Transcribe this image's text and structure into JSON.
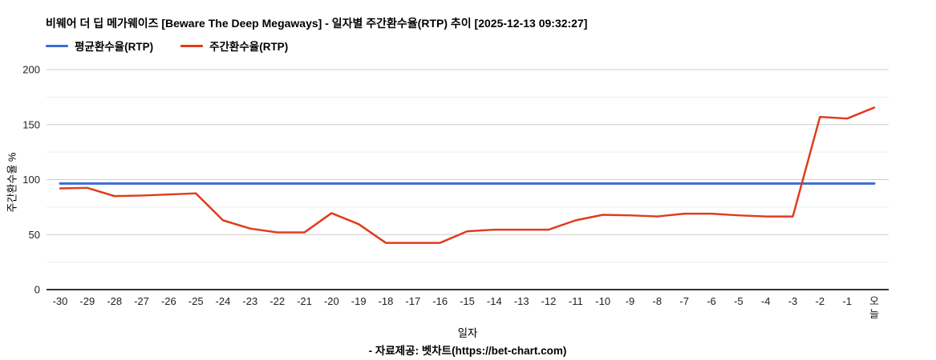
{
  "chart_data": {
    "type": "line",
    "title": "비웨어 더 딥 메가웨이즈 [Beware The Deep Megaways] - 일자별 주간환수율(RTP) 추이 [2025-12-13 09:32:27]",
    "xlabel": "일자",
    "ylabel": "주간환수율 %",
    "ylim": [
      0,
      200
    ],
    "yticks": [
      0,
      50,
      100,
      150,
      200
    ],
    "minor_yticks": [
      25,
      75,
      125,
      175
    ],
    "grid": true,
    "legend_position": "top-left",
    "grid_color": "#cccccc",
    "minor_grid_color": "#ededed",
    "axis_line_color": "#333333",
    "tick_text_color": "#222222",
    "categories": [
      "-30",
      "-29",
      "-28",
      "-27",
      "-26",
      "-25",
      "-24",
      "-23",
      "-22",
      "-21",
      "-20",
      "-19",
      "-18",
      "-17",
      "-16",
      "-15",
      "-14",
      "-13",
      "-12",
      "-11",
      "-10",
      "-9",
      "-8",
      "-7",
      "-6",
      "-5",
      "-4",
      "-3",
      "-2",
      "-1",
      "오늘"
    ],
    "series": [
      {
        "name": "평균환수율(RTP)",
        "color": "#3d6cd3",
        "values": [
          96.5,
          96.5,
          96.5,
          96.5,
          96.5,
          96.5,
          96.5,
          96.5,
          96.5,
          96.5,
          96.5,
          96.5,
          96.5,
          96.5,
          96.5,
          96.5,
          96.5,
          96.5,
          96.5,
          96.5,
          96.5,
          96.5,
          96.5,
          96.5,
          96.5,
          96.5,
          96.5,
          96.5,
          96.5,
          96.5,
          96.5
        ]
      },
      {
        "name": "주간환수율(RTP)",
        "color": "#e03c1c",
        "values": [
          92,
          92.5,
          85,
          85.5,
          86.5,
          87.5,
          63,
          55.5,
          52,
          52,
          69.5,
          59.5,
          42.5,
          42.5,
          42.5,
          53,
          54.5,
          54.5,
          54.5,
          63,
          68,
          67.5,
          66.5,
          69,
          69,
          67.5,
          66.5,
          66.5,
          157,
          155.5,
          165.5
        ]
      }
    ]
  },
  "footer": {
    "source_text": "- 자료제공: 벳차트(https://bet-chart.com)"
  }
}
